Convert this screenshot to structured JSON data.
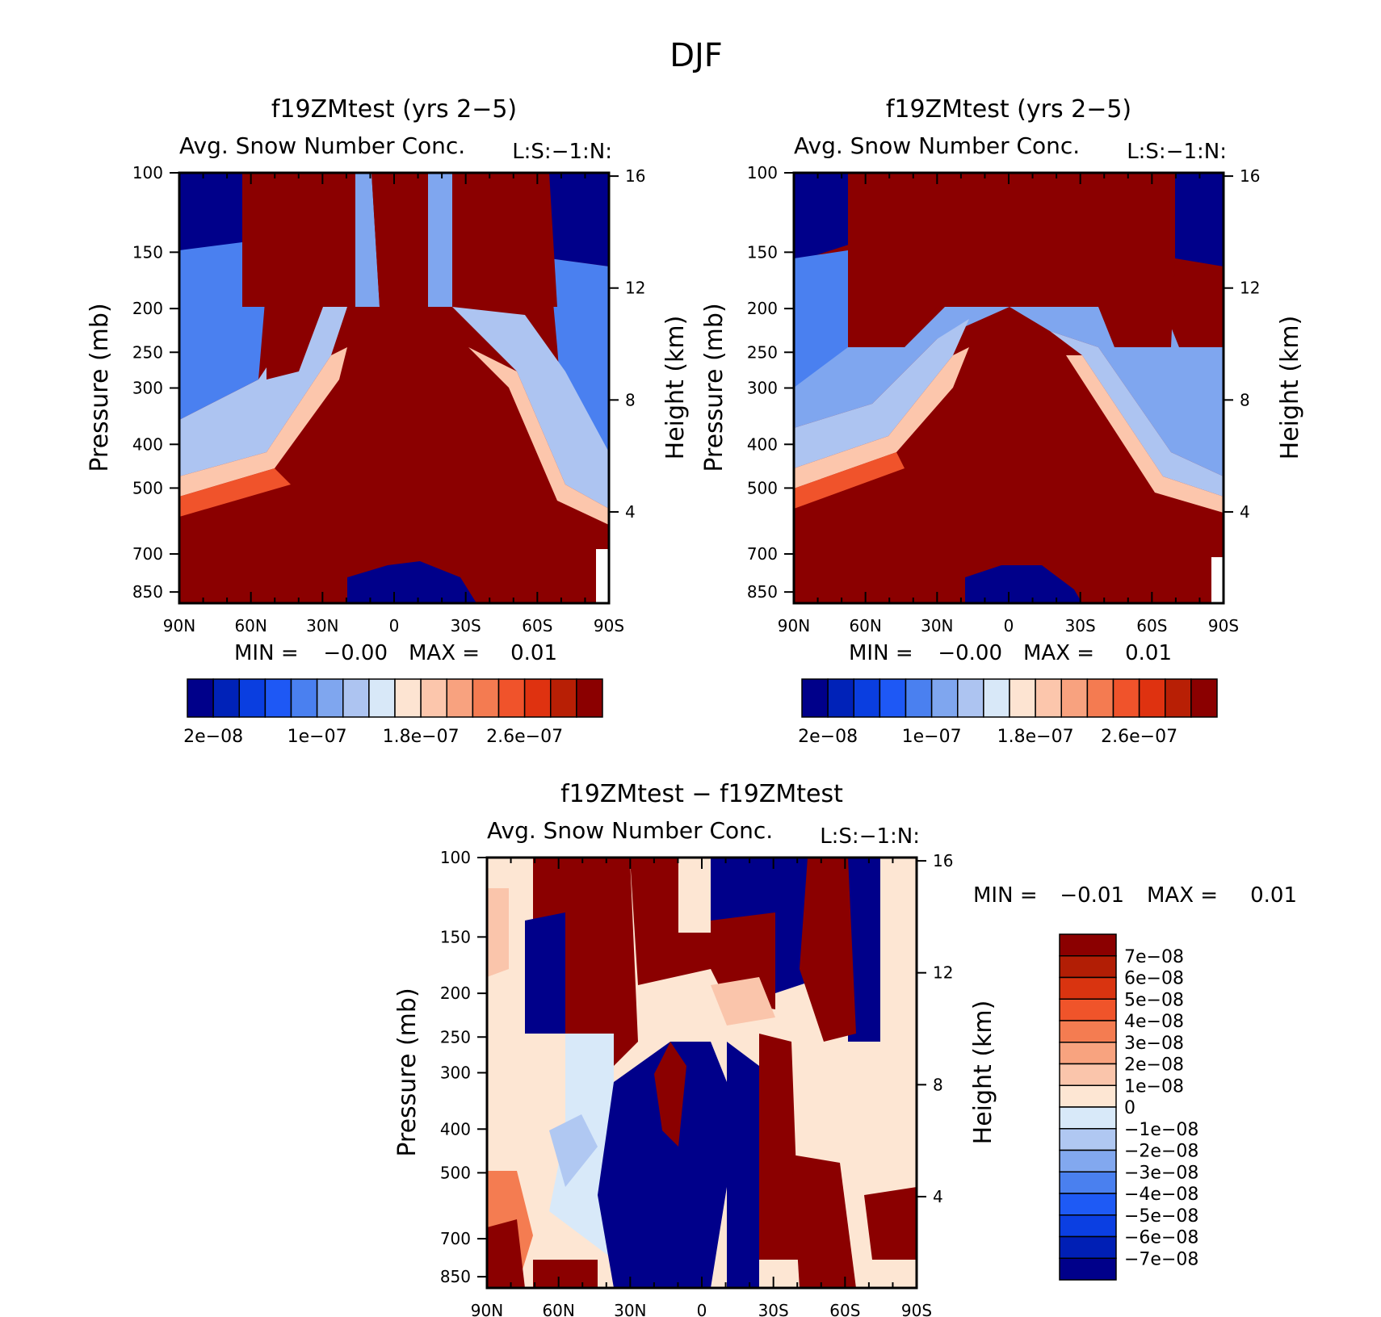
{
  "figure": {
    "title": "DJF",
    "colors": {
      "abs_palette": [
        "#00008a",
        "#0022b8",
        "#0a3ee0",
        "#1e58f5",
        "#4a80f0",
        "#7fa6ef",
        "#adc4f1",
        "#d8e8f8",
        "#fde4d2",
        "#fcc6ac",
        "#f8a27f",
        "#f47b51",
        "#f0532b",
        "#df3210",
        "#b81f05",
        "#8b0000"
      ],
      "diff_palette": [
        "#00008a",
        "#001fb5",
        "#0b3fe2",
        "#1e5af5",
        "#4a80ef",
        "#82a8ef",
        "#b0c8f2",
        "#d8e9f9",
        "#fde6d3",
        "#fac5ab",
        "#f8a37f",
        "#f47c51",
        "#f0542a",
        "#d93410",
        "#b21e05",
        "#8b0000"
      ]
    }
  },
  "chart_data": [
    {
      "type": "heatmap",
      "title": "f19ZMtest (yrs 2−5)",
      "subtitle": "Avg. Snow Number Conc.",
      "corner_label": "L:S:−1:N:",
      "ylabel": "Pressure (mb)",
      "y2label": "Height (km)",
      "x_ticks": [
        "90N",
        "60N",
        "30N",
        "0",
        "30S",
        "60S",
        "90S"
      ],
      "x_range": [
        90,
        -90
      ],
      "y_ticks": [
        100,
        150,
        200,
        250,
        300,
        400,
        500,
        700,
        850
      ],
      "y_range": [
        100,
        900
      ],
      "y_scale": "log",
      "y2_ticks": [
        16,
        12,
        8,
        4
      ],
      "min_label": "MIN =",
      "min_value": "−0.00",
      "max_label": "MAX =",
      "max_value": "0.01",
      "colorbar_labels": [
        "2e−08",
        "1e−07",
        "1.8e−07",
        "2.6e−07"
      ],
      "colorbar_label_indices": [
        1,
        5,
        9,
        13
      ]
    },
    {
      "type": "heatmap",
      "title": "f19ZMtest (yrs 2−5)",
      "subtitle": "Avg. Snow Number Conc.",
      "corner_label": "L:S:−1:N:",
      "ylabel": "Pressure (mb)",
      "y2label": "Height (km)",
      "x_ticks": [
        "90N",
        "60N",
        "30N",
        "0",
        "30S",
        "60S",
        "90S"
      ],
      "x_range": [
        90,
        -90
      ],
      "y_ticks": [
        100,
        150,
        200,
        250,
        300,
        400,
        500,
        700,
        850
      ],
      "y_range": [
        100,
        900
      ],
      "y_scale": "log",
      "y2_ticks": [
        16,
        12,
        8,
        4
      ],
      "min_label": "MIN =",
      "min_value": "−0.00",
      "max_label": "MAX =",
      "max_value": "0.01",
      "colorbar_labels": [
        "2e−08",
        "1e−07",
        "1.8e−07",
        "2.6e−07"
      ],
      "colorbar_label_indices": [
        1,
        5,
        9,
        13
      ]
    },
    {
      "type": "heatmap",
      "title": "f19ZMtest − f19ZMtest",
      "subtitle": "Avg. Snow Number Conc.",
      "corner_label": "L:S:−1:N:",
      "ylabel": "Pressure (mb)",
      "y2label": "Height (km)",
      "x_ticks": [
        "90N",
        "60N",
        "30N",
        "0",
        "30S",
        "60S",
        "90S"
      ],
      "x_range": [
        90,
        -90
      ],
      "y_ticks": [
        100,
        150,
        200,
        250,
        300,
        400,
        500,
        700,
        850
      ],
      "y_range": [
        100,
        900
      ],
      "y_scale": "log",
      "y2_ticks": [
        16,
        12,
        8,
        4
      ],
      "min_label": "MIN =",
      "min_value": "−0.01",
      "max_label": "MAX =",
      "max_value": "0.01",
      "colorbar_labels": [
        "7e−08",
        "6e−08",
        "5e−08",
        "4e−08",
        "3e−08",
        "2e−08",
        "1e−08",
        "0",
        "−1e−08",
        "−2e−08",
        "−3e−08",
        "−4e−08",
        "−5e−08",
        "−6e−08",
        "−7e−08"
      ]
    }
  ]
}
